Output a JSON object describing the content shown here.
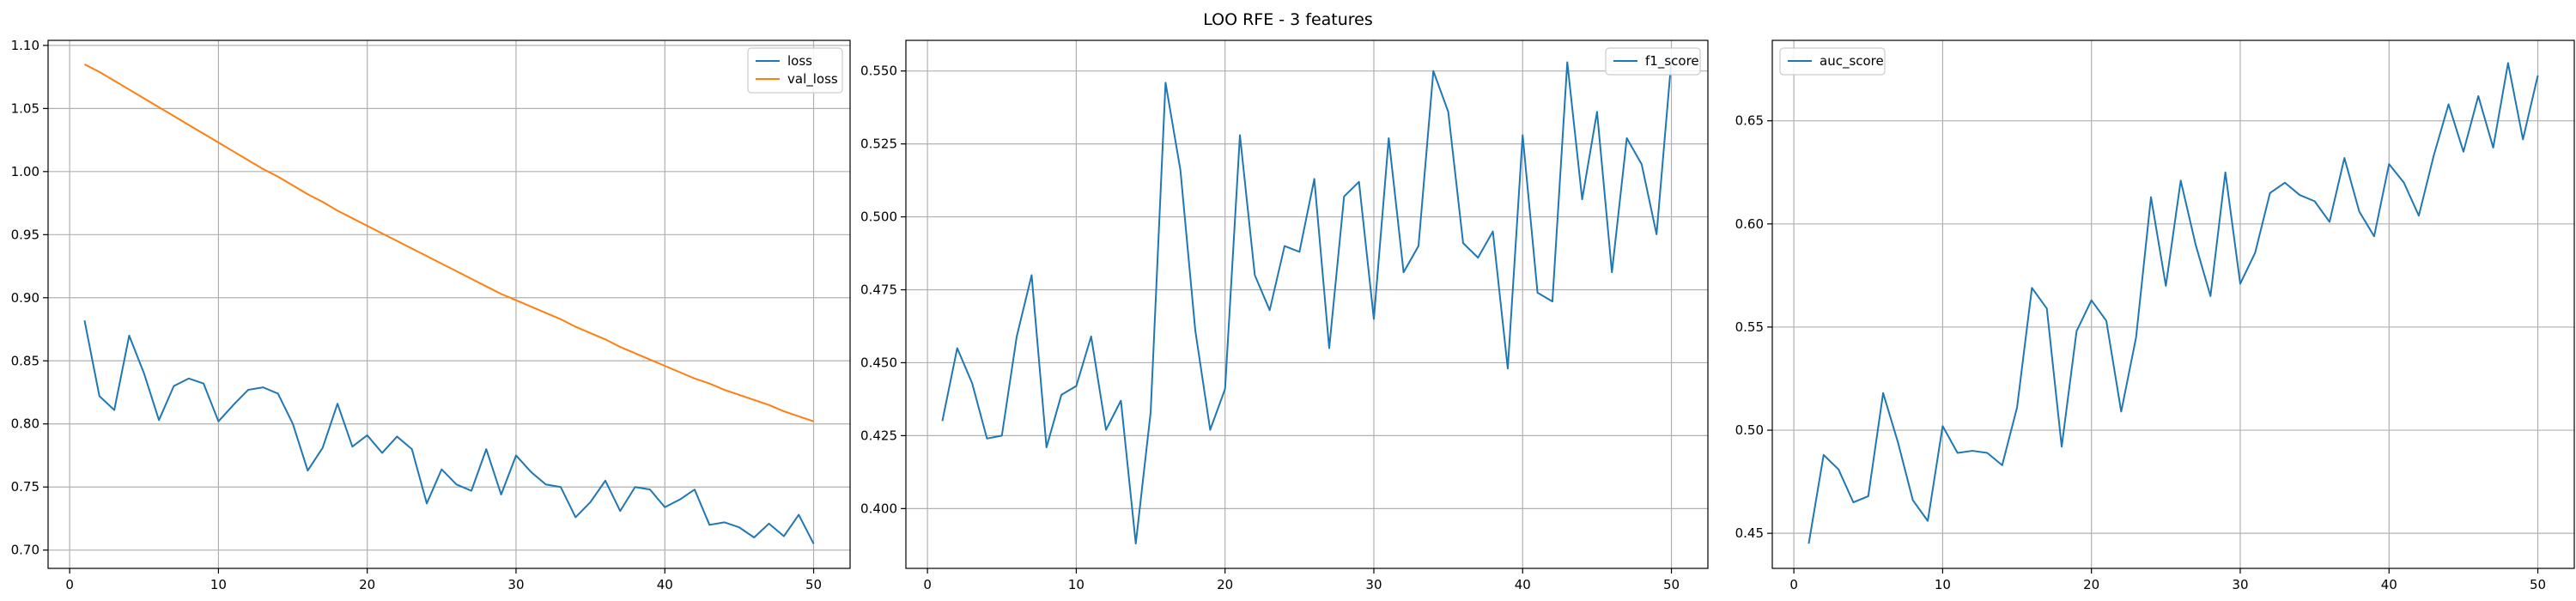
{
  "figure": {
    "suptitle": "LOO RFE - 3 features"
  },
  "chart_data": [
    {
      "type": "line",
      "title": "",
      "xlabel": "",
      "ylabel": "",
      "xlim": [
        -1.45,
        52.45
      ],
      "ylim": [
        0.6855,
        1.104
      ],
      "grid": true,
      "legend_position": "upper right",
      "x_ticks": [
        0,
        10,
        20,
        30,
        40,
        50
      ],
      "y_ticks": [
        0.7,
        0.75,
        0.8,
        0.85,
        0.9,
        0.95,
        1.0,
        1.05,
        1.1
      ],
      "y_tick_labels": [
        "0.70",
        "0.75",
        "0.80",
        "0.85",
        "0.90",
        "0.95",
        "1.00",
        "1.05",
        "1.10"
      ],
      "x": [
        1,
        2,
        3,
        4,
        5,
        6,
        7,
        8,
        9,
        10,
        11,
        12,
        13,
        14,
        15,
        16,
        17,
        18,
        19,
        20,
        21,
        22,
        23,
        24,
        25,
        26,
        27,
        28,
        29,
        30,
        31,
        32,
        33,
        34,
        35,
        36,
        37,
        38,
        39,
        40,
        41,
        42,
        43,
        44,
        45,
        46,
        47,
        48,
        49,
        50
      ],
      "series": [
        {
          "name": "loss",
          "color": "#1f77b4",
          "values": [
            0.882,
            0.822,
            0.811,
            0.87,
            0.84,
            0.803,
            0.83,
            0.836,
            0.832,
            0.802,
            0.815,
            0.827,
            0.829,
            0.824,
            0.8,
            0.763,
            0.781,
            0.816,
            0.782,
            0.791,
            0.777,
            0.79,
            0.78,
            0.737,
            0.764,
            0.752,
            0.747,
            0.78,
            0.744,
            0.775,
            0.762,
            0.752,
            0.75,
            0.726,
            0.738,
            0.755,
            0.731,
            0.75,
            0.748,
            0.734,
            0.74,
            0.748,
            0.72,
            0.722,
            0.718,
            0.71,
            0.721,
            0.711,
            0.728,
            0.705
          ]
        },
        {
          "name": "val_loss",
          "color": "#ff7f0e",
          "values": [
            1.085,
            1.079,
            1.072,
            1.065,
            1.058,
            1.051,
            1.044,
            1.037,
            1.03,
            1.023,
            1.016,
            1.009,
            1.002,
            0.996,
            0.989,
            0.982,
            0.976,
            0.969,
            0.963,
            0.957,
            0.951,
            0.945,
            0.939,
            0.933,
            0.927,
            0.921,
            0.915,
            0.909,
            0.903,
            0.898,
            0.893,
            0.888,
            0.883,
            0.877,
            0.872,
            0.867,
            0.861,
            0.856,
            0.851,
            0.846,
            0.841,
            0.836,
            0.832,
            0.827,
            0.823,
            0.819,
            0.815,
            0.81,
            0.806,
            0.802
          ]
        }
      ]
    },
    {
      "type": "line",
      "title": "",
      "xlabel": "",
      "ylabel": "",
      "xlim": [
        -1.45,
        52.45
      ],
      "ylim": [
        0.3795,
        0.5605
      ],
      "grid": true,
      "legend_position": "upper right",
      "x_ticks": [
        0,
        10,
        20,
        30,
        40,
        50
      ],
      "y_ticks": [
        0.4,
        0.425,
        0.45,
        0.475,
        0.5,
        0.525,
        0.55
      ],
      "y_tick_labels": [
        "0.400",
        "0.425",
        "0.450",
        "0.475",
        "0.500",
        "0.525",
        "0.550"
      ],
      "x": [
        1,
        2,
        3,
        4,
        5,
        6,
        7,
        8,
        9,
        10,
        11,
        12,
        13,
        14,
        15,
        16,
        17,
        18,
        19,
        20,
        21,
        22,
        23,
        24,
        25,
        26,
        27,
        28,
        29,
        30,
        31,
        32,
        33,
        34,
        35,
        36,
        37,
        38,
        39,
        40,
        41,
        42,
        43,
        44,
        45,
        46,
        47,
        48,
        49,
        50
      ],
      "series": [
        {
          "name": "f1_score",
          "color": "#1f77b4",
          "values": [
            0.43,
            0.455,
            0.443,
            0.424,
            0.425,
            0.459,
            0.48,
            0.421,
            0.439,
            0.442,
            0.459,
            0.427,
            0.437,
            0.388,
            0.433,
            0.546,
            0.516,
            0.461,
            0.427,
            0.441,
            0.528,
            0.48,
            0.468,
            0.49,
            0.488,
            0.513,
            0.455,
            0.507,
            0.512,
            0.465,
            0.527,
            0.481,
            0.49,
            0.55,
            0.536,
            0.491,
            0.486,
            0.495,
            0.448,
            0.528,
            0.474,
            0.471,
            0.553,
            0.506,
            0.536,
            0.481,
            0.527,
            0.518,
            0.494,
            0.554
          ]
        }
      ]
    },
    {
      "type": "line",
      "title": "",
      "xlabel": "",
      "ylabel": "",
      "xlim": [
        -1.45,
        52.45
      ],
      "ylim": [
        0.433,
        0.689
      ],
      "grid": true,
      "legend_position": "upper left",
      "x_ticks": [
        0,
        10,
        20,
        30,
        40,
        50
      ],
      "y_ticks": [
        0.45,
        0.5,
        0.55,
        0.6,
        0.65
      ],
      "y_tick_labels": [
        "0.45",
        "0.50",
        "0.55",
        "0.60",
        "0.65"
      ],
      "x": [
        1,
        2,
        3,
        4,
        5,
        6,
        7,
        8,
        9,
        10,
        11,
        12,
        13,
        14,
        15,
        16,
        17,
        18,
        19,
        20,
        21,
        22,
        23,
        24,
        25,
        26,
        27,
        28,
        29,
        30,
        31,
        32,
        33,
        34,
        35,
        36,
        37,
        38,
        39,
        40,
        41,
        42,
        43,
        44,
        45,
        46,
        47,
        48,
        49,
        50
      ],
      "series": [
        {
          "name": "auc_score",
          "color": "#1f77b4",
          "values": [
            0.445,
            0.488,
            0.481,
            0.465,
            0.468,
            0.518,
            0.494,
            0.466,
            0.456,
            0.502,
            0.489,
            0.49,
            0.489,
            0.483,
            0.511,
            0.569,
            0.559,
            0.492,
            0.548,
            0.563,
            0.553,
            0.509,
            0.545,
            0.613,
            0.57,
            0.621,
            0.59,
            0.565,
            0.625,
            0.571,
            0.586,
            0.615,
            0.62,
            0.614,
            0.611,
            0.601,
            0.632,
            0.606,
            0.594,
            0.629,
            0.62,
            0.604,
            0.633,
            0.658,
            0.635,
            0.662,
            0.637,
            0.678,
            0.641,
            0.672
          ]
        }
      ]
    }
  ]
}
